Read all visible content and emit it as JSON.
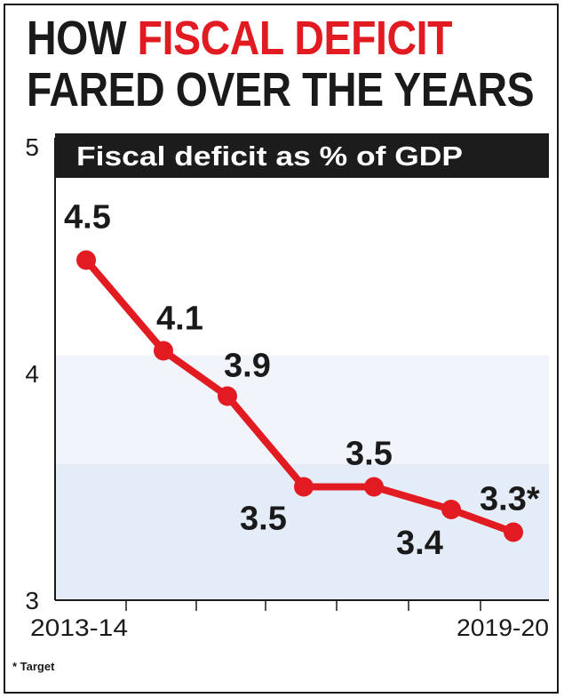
{
  "headline": {
    "part1": "HOW ",
    "accent": "FISCAL DEFICIT",
    "line2": "FARED OVER THE YEARS"
  },
  "footnote": "* Target",
  "colors": {
    "accent": "#e21b22",
    "line": "#e21b22",
    "banner": "#1c1c1c",
    "band_light": "#f1f5fb",
    "band_dark": "#e4edf7"
  },
  "chart_data": {
    "type": "line",
    "title": "Fiscal deficit as % of GDP",
    "x_tick_labels": [
      "2013-14",
      "2019-20"
    ],
    "series": [
      {
        "values": [
          4.5,
          4.1,
          3.9,
          3.5,
          3.5,
          3.4,
          3.3
        ]
      }
    ],
    "point_labels": [
      "4.5",
      "4.1",
      "3.9",
      "3.5",
      "3.5",
      "3.4",
      "3.3*"
    ],
    "yticks": [
      3,
      4,
      5
    ],
    "ylim": [
      3,
      5
    ],
    "grid": false
  }
}
